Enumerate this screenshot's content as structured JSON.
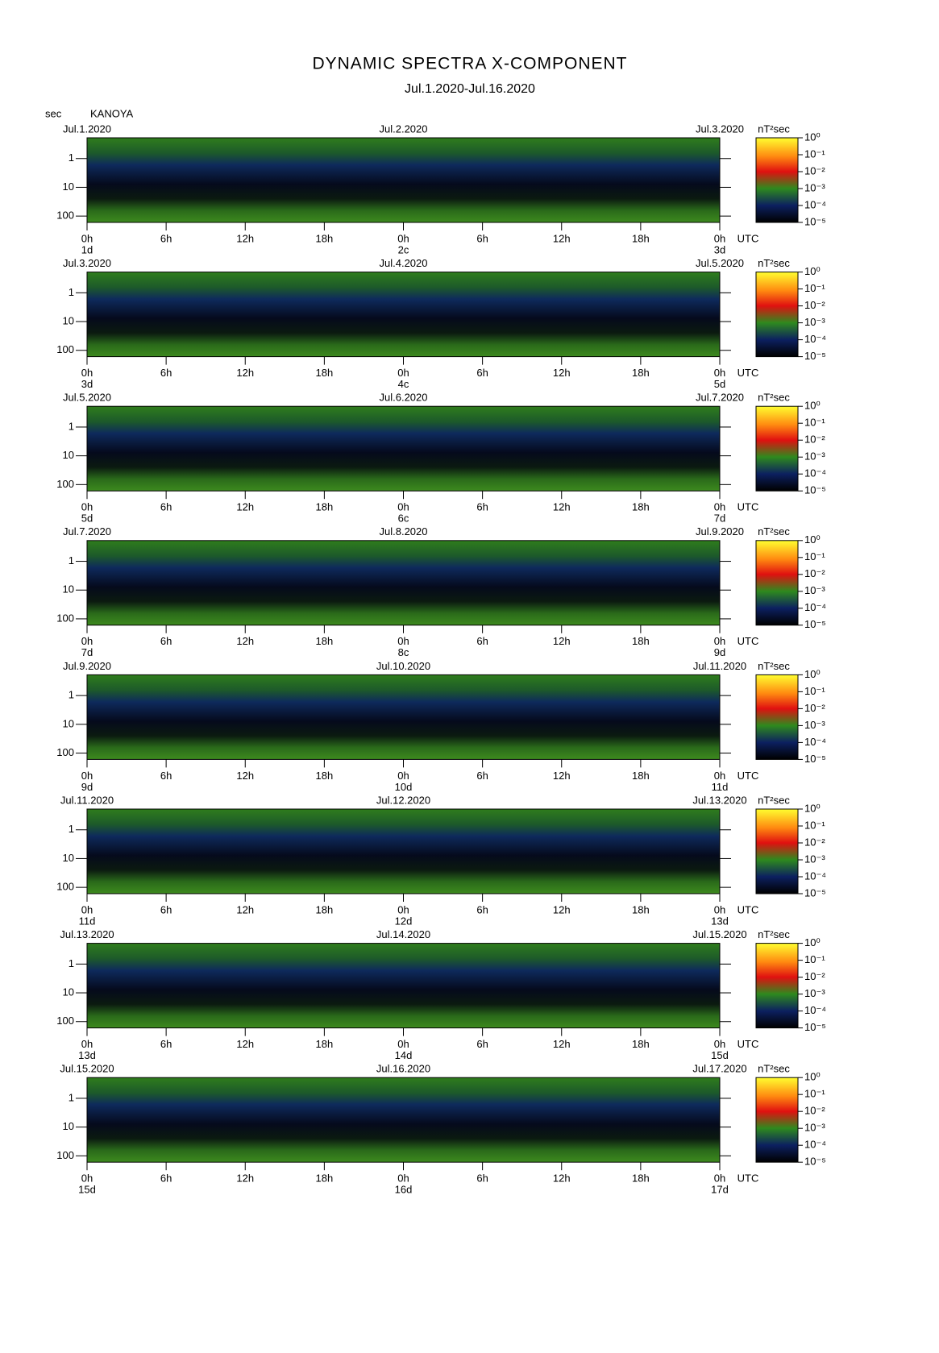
{
  "header": {
    "title": "DYNAMIC SPECTRA X-COMPONENT",
    "subtitle": "Jul.1.2020-Jul.16.2020",
    "y_unit": "sec",
    "station": "KANOYA"
  },
  "chart_data": [
    {
      "type": "spectrogram",
      "date_left": "Jul.1.2020",
      "date_center": "Jul.2.2020",
      "date_right": "Jul.3.2020",
      "color_unit": "nT²sec",
      "x_unit": "UTC",
      "xlim": [
        0,
        48
      ],
      "xticks": [
        {
          "value": 0,
          "label": "0h"
        },
        {
          "value": 6,
          "label": "6h"
        },
        {
          "value": 12,
          "label": "12h"
        },
        {
          "value": 18,
          "label": "18h"
        },
        {
          "value": 24,
          "label": "0h"
        },
        {
          "value": 30,
          "label": "6h"
        },
        {
          "value": 36,
          "label": "12h"
        },
        {
          "value": 42,
          "label": "18h"
        },
        {
          "value": 48,
          "label": "0h"
        }
      ],
      "day_ticks": [
        {
          "value": 0,
          "label": "1d"
        },
        {
          "value": 24,
          "label": "2c"
        },
        {
          "value": 48,
          "label": "3d"
        }
      ],
      "ylim": [
        0.19,
        166
      ],
      "log_y": true,
      "yticks": [
        1,
        10,
        100
      ],
      "clim": [
        1e-05,
        1
      ],
      "cticks": [
        {
          "value": 1,
          "label": "10⁰"
        },
        {
          "value": 0.1,
          "label": "10⁻¹"
        },
        {
          "value": 0.01,
          "label": "10⁻²"
        },
        {
          "value": 0.001,
          "label": "10⁻³"
        },
        {
          "value": 0.0001,
          "label": "10⁻⁴"
        },
        {
          "value": 1e-05,
          "label": "10⁻⁵"
        }
      ]
    },
    {
      "type": "spectrogram",
      "date_left": "Jul.3.2020",
      "date_center": "Jul.4.2020",
      "date_right": "Jul.5.2020",
      "color_unit": "nT²sec",
      "x_unit": "UTC",
      "xlim": [
        0,
        48
      ],
      "xticks": [
        {
          "value": 0,
          "label": "0h"
        },
        {
          "value": 6,
          "label": "6h"
        },
        {
          "value": 12,
          "label": "12h"
        },
        {
          "value": 18,
          "label": "18h"
        },
        {
          "value": 24,
          "label": "0h"
        },
        {
          "value": 30,
          "label": "6h"
        },
        {
          "value": 36,
          "label": "12h"
        },
        {
          "value": 42,
          "label": "18h"
        },
        {
          "value": 48,
          "label": "0h"
        }
      ],
      "day_ticks": [
        {
          "value": 0,
          "label": "3d"
        },
        {
          "value": 24,
          "label": "4c"
        },
        {
          "value": 48,
          "label": "5d"
        }
      ],
      "ylim": [
        0.19,
        166
      ],
      "log_y": true,
      "yticks": [
        1,
        10,
        100
      ],
      "clim": [
        1e-05,
        1
      ],
      "cticks": [
        {
          "value": 1,
          "label": "10⁰"
        },
        {
          "value": 0.1,
          "label": "10⁻¹"
        },
        {
          "value": 0.01,
          "label": "10⁻²"
        },
        {
          "value": 0.001,
          "label": "10⁻³"
        },
        {
          "value": 0.0001,
          "label": "10⁻⁴"
        },
        {
          "value": 1e-05,
          "label": "10⁻⁵"
        }
      ]
    },
    {
      "type": "spectrogram",
      "date_left": "Jul.5.2020",
      "date_center": "Jul.6.2020",
      "date_right": "Jul.7.2020",
      "color_unit": "nT²sec",
      "x_unit": "UTC",
      "xlim": [
        0,
        48
      ],
      "xticks": [
        {
          "value": 0,
          "label": "0h"
        },
        {
          "value": 6,
          "label": "6h"
        },
        {
          "value": 12,
          "label": "12h"
        },
        {
          "value": 18,
          "label": "18h"
        },
        {
          "value": 24,
          "label": "0h"
        },
        {
          "value": 30,
          "label": "6h"
        },
        {
          "value": 36,
          "label": "12h"
        },
        {
          "value": 42,
          "label": "18h"
        },
        {
          "value": 48,
          "label": "0h"
        }
      ],
      "day_ticks": [
        {
          "value": 0,
          "label": "5d"
        },
        {
          "value": 24,
          "label": "6c"
        },
        {
          "value": 48,
          "label": "7d"
        }
      ],
      "ylim": [
        0.19,
        166
      ],
      "log_y": true,
      "yticks": [
        1,
        10,
        100
      ],
      "clim": [
        1e-05,
        1
      ],
      "cticks": [
        {
          "value": 1,
          "label": "10⁰"
        },
        {
          "value": 0.1,
          "label": "10⁻¹"
        },
        {
          "value": 0.01,
          "label": "10⁻²"
        },
        {
          "value": 0.001,
          "label": "10⁻³"
        },
        {
          "value": 0.0001,
          "label": "10⁻⁴"
        },
        {
          "value": 1e-05,
          "label": "10⁻⁵"
        }
      ]
    },
    {
      "type": "spectrogram",
      "date_left": "Jul.7.2020",
      "date_center": "Jul.8.2020",
      "date_right": "Jul.9.2020",
      "color_unit": "nT²sec",
      "x_unit": "UTC",
      "xlim": [
        0,
        48
      ],
      "xticks": [
        {
          "value": 0,
          "label": "0h"
        },
        {
          "value": 6,
          "label": "6h"
        },
        {
          "value": 12,
          "label": "12h"
        },
        {
          "value": 18,
          "label": "18h"
        },
        {
          "value": 24,
          "label": "0h"
        },
        {
          "value": 30,
          "label": "6h"
        },
        {
          "value": 36,
          "label": "12h"
        },
        {
          "value": 42,
          "label": "18h"
        },
        {
          "value": 48,
          "label": "0h"
        }
      ],
      "day_ticks": [
        {
          "value": 0,
          "label": "7d"
        },
        {
          "value": 24,
          "label": "8c"
        },
        {
          "value": 48,
          "label": "9d"
        }
      ],
      "ylim": [
        0.19,
        166
      ],
      "log_y": true,
      "yticks": [
        1,
        10,
        100
      ],
      "clim": [
        1e-05,
        1
      ],
      "cticks": [
        {
          "value": 1,
          "label": "10⁰"
        },
        {
          "value": 0.1,
          "label": "10⁻¹"
        },
        {
          "value": 0.01,
          "label": "10⁻²"
        },
        {
          "value": 0.001,
          "label": "10⁻³"
        },
        {
          "value": 0.0001,
          "label": "10⁻⁴"
        },
        {
          "value": 1e-05,
          "label": "10⁻⁵"
        }
      ]
    },
    {
      "type": "spectrogram",
      "date_left": "Jul.9.2020",
      "date_center": "Jul.10.2020",
      "date_right": "Jul.11.2020",
      "color_unit": "nT²sec",
      "x_unit": "UTC",
      "xlim": [
        0,
        48
      ],
      "xticks": [
        {
          "value": 0,
          "label": "0h"
        },
        {
          "value": 6,
          "label": "6h"
        },
        {
          "value": 12,
          "label": "12h"
        },
        {
          "value": 18,
          "label": "18h"
        },
        {
          "value": 24,
          "label": "0h"
        },
        {
          "value": 30,
          "label": "6h"
        },
        {
          "value": 36,
          "label": "12h"
        },
        {
          "value": 42,
          "label": "18h"
        },
        {
          "value": 48,
          "label": "0h"
        }
      ],
      "day_ticks": [
        {
          "value": 0,
          "label": "9d"
        },
        {
          "value": 24,
          "label": "10d"
        },
        {
          "value": 48,
          "label": "11d"
        }
      ],
      "ylim": [
        0.19,
        166
      ],
      "log_y": true,
      "yticks": [
        1,
        10,
        100
      ],
      "clim": [
        1e-05,
        1
      ],
      "cticks": [
        {
          "value": 1,
          "label": "10⁰"
        },
        {
          "value": 0.1,
          "label": "10⁻¹"
        },
        {
          "value": 0.01,
          "label": "10⁻²"
        },
        {
          "value": 0.001,
          "label": "10⁻³"
        },
        {
          "value": 0.0001,
          "label": "10⁻⁴"
        },
        {
          "value": 1e-05,
          "label": "10⁻⁵"
        }
      ]
    },
    {
      "type": "spectrogram",
      "date_left": "Jul.11.2020",
      "date_center": "Jul.12.2020",
      "date_right": "Jul.13.2020",
      "color_unit": "nT²sec",
      "x_unit": "UTC",
      "xlim": [
        0,
        48
      ],
      "xticks": [
        {
          "value": 0,
          "label": "0h"
        },
        {
          "value": 6,
          "label": "6h"
        },
        {
          "value": 12,
          "label": "12h"
        },
        {
          "value": 18,
          "label": "18h"
        },
        {
          "value": 24,
          "label": "0h"
        },
        {
          "value": 30,
          "label": "6h"
        },
        {
          "value": 36,
          "label": "12h"
        },
        {
          "value": 42,
          "label": "18h"
        },
        {
          "value": 48,
          "label": "0h"
        }
      ],
      "day_ticks": [
        {
          "value": 0,
          "label": "11d"
        },
        {
          "value": 24,
          "label": "12d"
        },
        {
          "value": 48,
          "label": "13d"
        }
      ],
      "ylim": [
        0.19,
        166
      ],
      "log_y": true,
      "yticks": [
        1,
        10,
        100
      ],
      "clim": [
        1e-05,
        1
      ],
      "cticks": [
        {
          "value": 1,
          "label": "10⁰"
        },
        {
          "value": 0.1,
          "label": "10⁻¹"
        },
        {
          "value": 0.01,
          "label": "10⁻²"
        },
        {
          "value": 0.001,
          "label": "10⁻³"
        },
        {
          "value": 0.0001,
          "label": "10⁻⁴"
        },
        {
          "value": 1e-05,
          "label": "10⁻⁵"
        }
      ]
    },
    {
      "type": "spectrogram",
      "date_left": "Jul.13.2020",
      "date_center": "Jul.14.2020",
      "date_right": "Jul.15.2020",
      "color_unit": "nT²sec",
      "x_unit": "UTC",
      "xlim": [
        0,
        48
      ],
      "xticks": [
        {
          "value": 0,
          "label": "0h"
        },
        {
          "value": 6,
          "label": "6h"
        },
        {
          "value": 12,
          "label": "12h"
        },
        {
          "value": 18,
          "label": "18h"
        },
        {
          "value": 24,
          "label": "0h"
        },
        {
          "value": 30,
          "label": "6h"
        },
        {
          "value": 36,
          "label": "12h"
        },
        {
          "value": 42,
          "label": "18h"
        },
        {
          "value": 48,
          "label": "0h"
        }
      ],
      "day_ticks": [
        {
          "value": 0,
          "label": "13d"
        },
        {
          "value": 24,
          "label": "14d"
        },
        {
          "value": 48,
          "label": "15d"
        }
      ],
      "ylim": [
        0.19,
        166
      ],
      "log_y": true,
      "yticks": [
        1,
        10,
        100
      ],
      "clim": [
        1e-05,
        1
      ],
      "cticks": [
        {
          "value": 1,
          "label": "10⁰"
        },
        {
          "value": 0.1,
          "label": "10⁻¹"
        },
        {
          "value": 0.01,
          "label": "10⁻²"
        },
        {
          "value": 0.001,
          "label": "10⁻³"
        },
        {
          "value": 0.0001,
          "label": "10⁻⁴"
        },
        {
          "value": 1e-05,
          "label": "10⁻⁵"
        }
      ]
    },
    {
      "type": "spectrogram",
      "date_left": "Jul.15.2020",
      "date_center": "Jul.16.2020",
      "date_right": "Jul.17.2020",
      "color_unit": "nT²sec",
      "x_unit": "UTC",
      "xlim": [
        0,
        48
      ],
      "xticks": [
        {
          "value": 0,
          "label": "0h"
        },
        {
          "value": 6,
          "label": "6h"
        },
        {
          "value": 12,
          "label": "12h"
        },
        {
          "value": 18,
          "label": "18h"
        },
        {
          "value": 24,
          "label": "0h"
        },
        {
          "value": 30,
          "label": "6h"
        },
        {
          "value": 36,
          "label": "12h"
        },
        {
          "value": 42,
          "label": "18h"
        },
        {
          "value": 48,
          "label": "0h"
        }
      ],
      "day_ticks": [
        {
          "value": 0,
          "label": "15d"
        },
        {
          "value": 24,
          "label": "16d"
        },
        {
          "value": 48,
          "label": "17d"
        }
      ],
      "ylim": [
        0.19,
        166
      ],
      "log_y": true,
      "yticks": [
        1,
        10,
        100
      ],
      "clim": [
        1e-05,
        1
      ],
      "cticks": [
        {
          "value": 1,
          "label": "10⁰"
        },
        {
          "value": 0.1,
          "label": "10⁻¹"
        },
        {
          "value": 0.01,
          "label": "10⁻²"
        },
        {
          "value": 0.001,
          "label": "10⁻³"
        },
        {
          "value": 0.0001,
          "label": "10⁻⁴"
        },
        {
          "value": 1e-05,
          "label": "10⁻⁵"
        }
      ]
    }
  ]
}
